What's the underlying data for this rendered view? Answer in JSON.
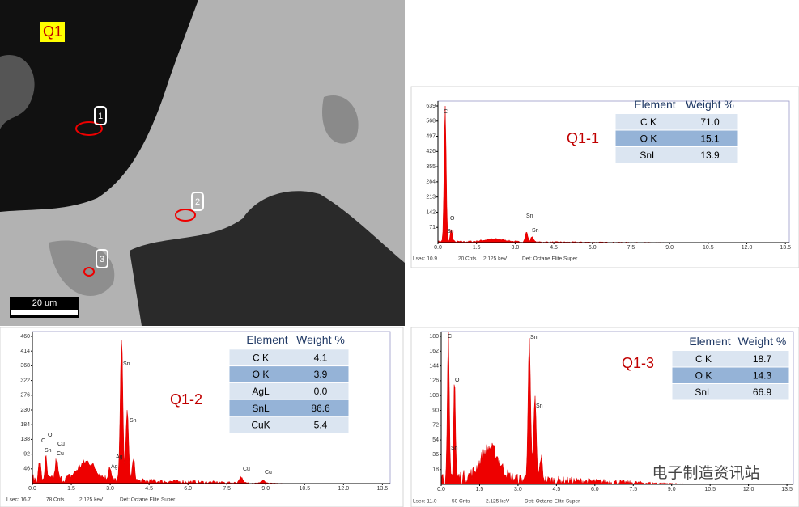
{
  "sem": {
    "label": "Q1",
    "points": [
      "1",
      "2",
      "3"
    ],
    "scale_bar": "20 um"
  },
  "panels": [
    {
      "label": "Q1-1",
      "table": {
        "header": [
          "Element",
          "Weight %"
        ],
        "rows": [
          [
            "C K",
            "71.0"
          ],
          [
            "O K",
            "15.1"
          ],
          [
            "SnL",
            "13.9"
          ]
        ]
      },
      "y_ticks": [
        "639",
        "568",
        "497",
        "426",
        "355",
        "284",
        "213",
        "142",
        "71"
      ],
      "x_ticks": [
        "0.0",
        "1.5",
        "3.0",
        "4.5",
        "6.0",
        "7.5",
        "9.0",
        "10.5",
        "12.0",
        "13.5"
      ],
      "peak_labels": [
        "C",
        "O",
        "Sn",
        "Sn",
        "Sn"
      ],
      "footer": [
        "Lsec: 10.9",
        "20 Cnts",
        "2.125 keV",
        "Det: Octane Elite Super"
      ]
    },
    {
      "label": "Q1-2",
      "table": {
        "header": [
          "Element",
          "Weight %"
        ],
        "rows": [
          [
            "C K",
            "4.1"
          ],
          [
            "O K",
            "3.9"
          ],
          [
            "AgL",
            "0.0"
          ],
          [
            "SnL",
            "86.6"
          ],
          [
            "CuK",
            "5.4"
          ]
        ]
      },
      "y_ticks": [
        "460",
        "414",
        "368",
        "322",
        "276",
        "230",
        "184",
        "138",
        "92",
        "46"
      ],
      "x_ticks": [
        "0.0",
        "1.5",
        "3.0",
        "4.5",
        "6.0",
        "7.5",
        "9.0",
        "10.5",
        "12.0",
        "13.5"
      ],
      "peak_labels": [
        "Sn",
        "Sn",
        "Ag",
        "Ag",
        "C",
        "O",
        "Sn",
        "Cu",
        "Cu",
        "Cu",
        "Cu"
      ],
      "footer": [
        "Lsec: 16.7",
        "78 Cnts",
        "2.125 keV",
        "Det: Octane Elite Super"
      ]
    },
    {
      "label": "Q1-3",
      "table": {
        "header": [
          "Element",
          "Weight %"
        ],
        "rows": [
          [
            "C K",
            "18.7"
          ],
          [
            "O K",
            "14.3"
          ],
          [
            "SnL",
            "66.9"
          ]
        ]
      },
      "y_ticks": [
        "180",
        "162",
        "144",
        "126",
        "108",
        "90",
        "72",
        "54",
        "36",
        "18"
      ],
      "x_ticks": [
        "0.0",
        "1.5",
        "3.0",
        "4.5",
        "6.0",
        "7.5",
        "9.0",
        "10.5",
        "12.0",
        "13.5"
      ],
      "peak_labels": [
        "C",
        "O",
        "Sn",
        "Sn",
        "Sn"
      ],
      "footer": [
        "Lsec: 11.0",
        "50 Cnts",
        "2.125 keV",
        "Det: Octane Elite Super"
      ]
    }
  ],
  "watermark": "电子制造资讯站"
}
